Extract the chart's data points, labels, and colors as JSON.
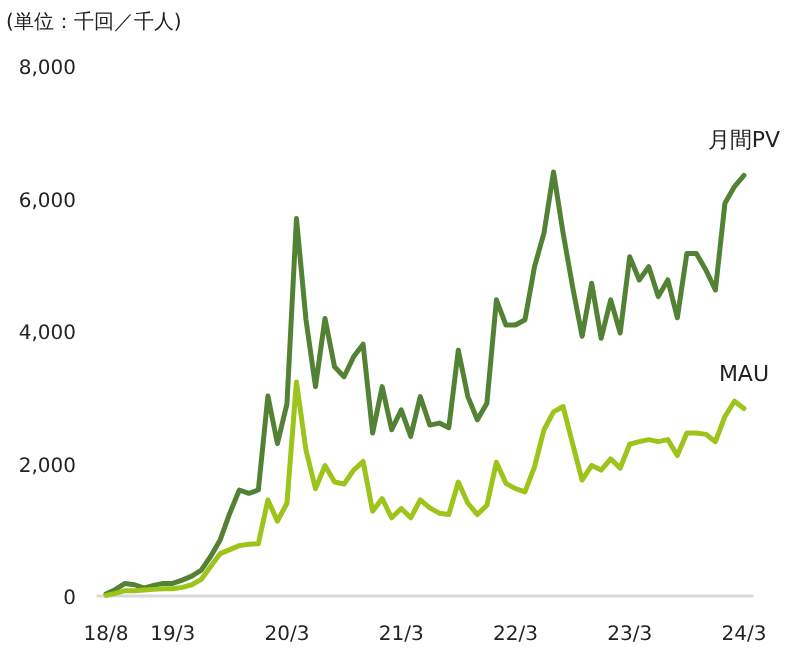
{
  "chart_data": {
    "type": "line",
    "ylabel": "(単位：千回／千人)",
    "categories": [
      "18/8",
      null,
      null,
      null,
      null,
      null,
      null,
      "19/3",
      null,
      null,
      null,
      null,
      null,
      null,
      null,
      null,
      null,
      null,
      null,
      "20/3",
      null,
      null,
      null,
      null,
      null,
      null,
      null,
      null,
      null,
      null,
      null,
      "21/3",
      null,
      null,
      null,
      null,
      null,
      null,
      null,
      null,
      null,
      null,
      null,
      "22/3",
      null,
      null,
      null,
      null,
      null,
      null,
      null,
      null,
      null,
      null,
      null,
      "23/3",
      null,
      null,
      null,
      null,
      null,
      null,
      null,
      null,
      null,
      null,
      null,
      "24/3"
    ],
    "series": [
      {
        "name": "月間PV",
        "color": "#548235",
        "values": [
          30,
          100,
          190,
          170,
          120,
          160,
          190,
          190,
          240,
          300,
          390,
          600,
          850,
          1250,
          1600,
          1550,
          1600,
          3020,
          2300,
          2900,
          5700,
          4170,
          3160,
          4190,
          3460,
          3310,
          3610,
          3800,
          2460,
          3160,
          2510,
          2810,
          2410,
          3010,
          2580,
          2610,
          2540,
          3710,
          3010,
          2660,
          2910,
          4470,
          4090,
          4090,
          4170,
          4970,
          5480,
          6400,
          5480,
          4670,
          3920,
          4720,
          3890,
          4470,
          3970,
          5120,
          4770,
          4970,
          4520,
          4770,
          4200,
          5170,
          5170,
          4920,
          4620,
          5930,
          6180,
          6350
        ]
      },
      {
        "name": "MAU",
        "color": "#9dc41a",
        "values": [
          10,
          40,
          80,
          80,
          90,
          100,
          110,
          110,
          130,
          170,
          250,
          450,
          640,
          700,
          760,
          780,
          790,
          1450,
          1130,
          1400,
          3230,
          2200,
          1620,
          1970,
          1720,
          1690,
          1900,
          2030,
          1280,
          1470,
          1180,
          1320,
          1180,
          1450,
          1330,
          1250,
          1230,
          1720,
          1400,
          1230,
          1370,
          2020,
          1700,
          1620,
          1570,
          1950,
          2510,
          2780,
          2860,
          2300,
          1750,
          1970,
          1900,
          2070,
          1930,
          2290,
          2330,
          2360,
          2330,
          2360,
          2120,
          2460,
          2460,
          2440,
          2330,
          2710,
          2940,
          2830
        ]
      }
    ],
    "ylim": [
      0,
      8000
    ],
    "yticks": [
      0,
      {
        "value": 2000,
        "label": "2,000"
      },
      {
        "value": 4000,
        "label": "4,000"
      },
      {
        "value": 6000,
        "label": "6,000"
      },
      {
        "value": 8000,
        "label": "8,000"
      }
    ],
    "grid": false,
    "marker": "none",
    "line_style": "solid"
  }
}
